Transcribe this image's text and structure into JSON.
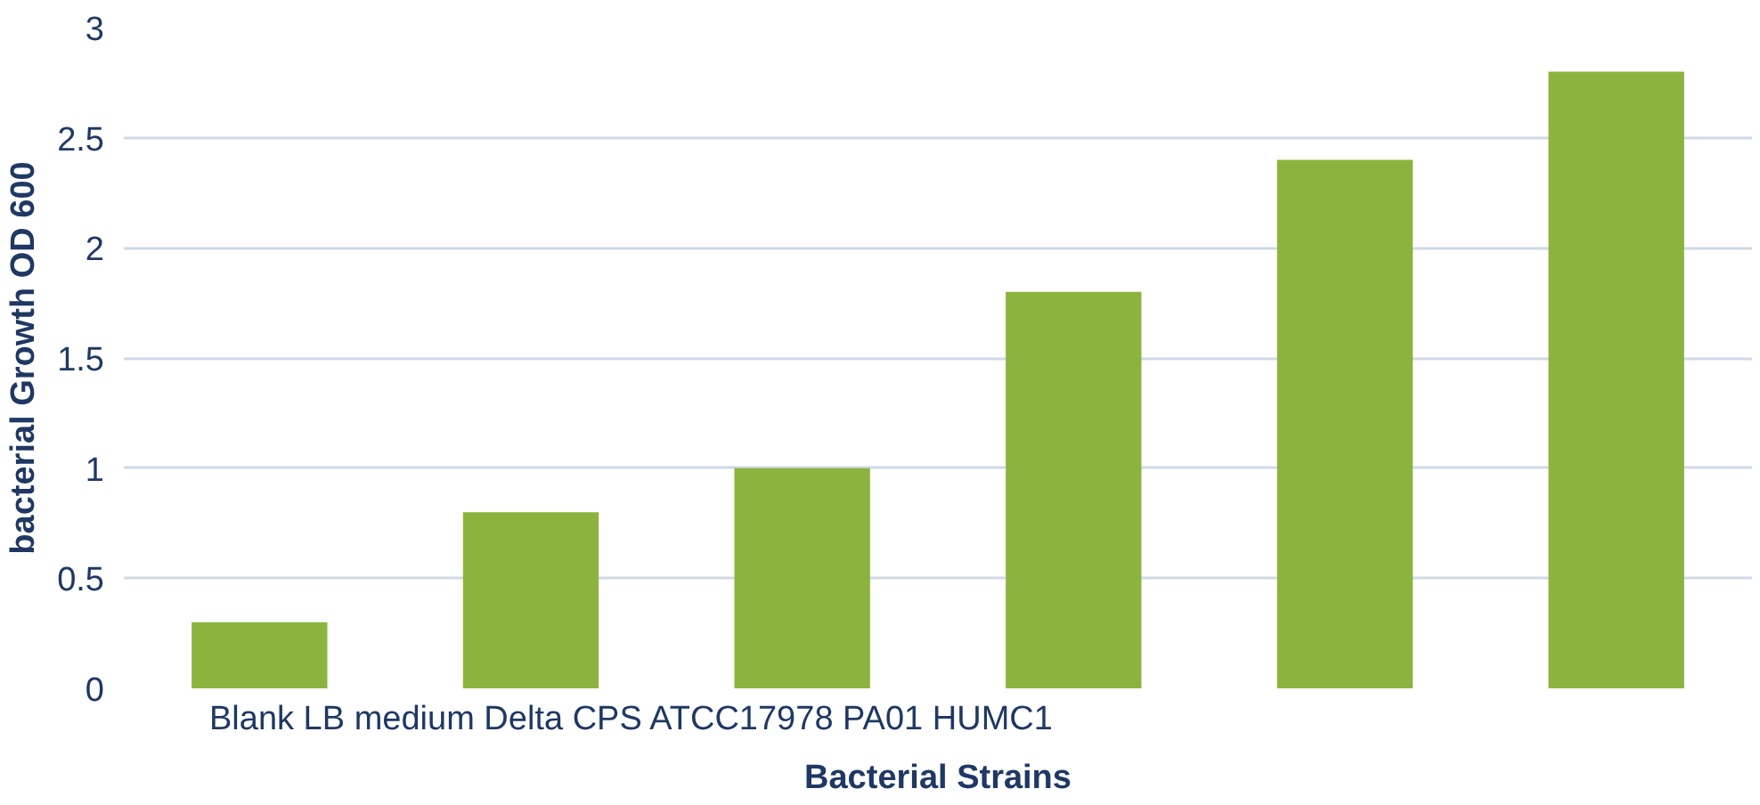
{
  "chart_data": {
    "type": "bar",
    "ylabel": "bacterial Growth OD 600",
    "xlabel": "Bacterial Strains",
    "categories": [
      null,
      null,
      null,
      null,
      null,
      null
    ],
    "values": [
      0.3,
      0.8,
      1,
      1.8,
      2.4,
      2.8
    ],
    "color": "#8cb33e",
    "ylim": [
      0,
      3
    ],
    "yticks": [
      0,
      0.5,
      1,
      1.5,
      2,
      2.5,
      3
    ],
    "grid": "y",
    "annotations": [
      "Blank LB medium Delta CPS ATCC17978 PA01 HUMC1"
    ]
  }
}
